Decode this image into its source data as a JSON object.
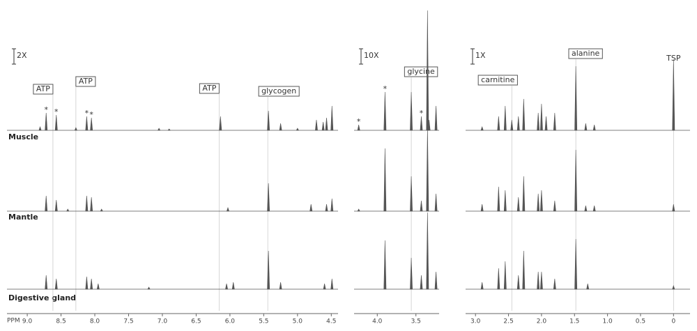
{
  "rows": [
    "Muscle",
    "Mantle",
    "Digestive gland"
  ],
  "x_label": "PPM",
  "chart_data": [
    {
      "type": "spectrum",
      "scale_label": "2X",
      "color": "#555555",
      "xlim": [
        9.3,
        4.4
      ],
      "xticks": [
        {
          "value": 9,
          "label": "9.0"
        },
        8.5,
        {
          "value": 8,
          "label": "8.0"
        },
        7.5,
        {
          "value": 7,
          "label": "7.0"
        },
        6.5,
        {
          "value": 6,
          "label": "6.0"
        },
        5.5,
        {
          "value": 5,
          "label": "5.0"
        },
        4.5
      ],
      "series": [
        {
          "x": [
            8.81,
            8.72,
            8.57,
            8.28,
            8.12,
            8.05,
            7.05,
            6.9,
            6.14,
            5.43,
            5.25,
            5.0,
            4.72,
            4.62,
            4.57,
            4.49
          ],
          "values": [
            5,
            25,
            22,
            4,
            20,
            18,
            3,
            2,
            20,
            28,
            10,
            3,
            15,
            12,
            18,
            35
          ]
        },
        {
          "x": [
            8.72,
            8.57,
            8.4,
            8.12,
            8.05,
            7.9,
            6.03,
            5.43,
            4.8,
            4.57,
            4.49
          ],
          "values": [
            22,
            16,
            3,
            22,
            20,
            3,
            5,
            40,
            10,
            10,
            18
          ]
        },
        {
          "x": [
            8.72,
            8.57,
            8.12,
            8.05,
            7.95,
            7.2,
            6.05,
            5.95,
            5.43,
            5.25,
            4.6,
            4.49
          ],
          "values": [
            20,
            15,
            18,
            15,
            8,
            3,
            8,
            10,
            55,
            10,
            8,
            15
          ]
        }
      ],
      "annotations": [
        {
          "text": "ATP",
          "x": 8.62
        },
        {
          "text": "ATP",
          "x": 8.28
        },
        {
          "text": "ATP",
          "x": 6.16
        },
        {
          "text": "glycogen",
          "x": 5.44
        }
      ],
      "markers": [
        {
          "text": "*",
          "x": 8.72
        },
        {
          "text": "*",
          "x": 8.57
        },
        {
          "text": "*",
          "x": 8.12
        },
        {
          "text": "*",
          "x": 8.05
        }
      ]
    },
    {
      "type": "spectrum",
      "scale_label": "10X",
      "color": "#555555",
      "xlim": [
        4.3,
        3.2
      ],
      "xticks": [
        {
          "value": 4,
          "label": "4.0"
        },
        3.5
      ],
      "series": [
        {
          "x": [
            4.24,
            3.9,
            3.56,
            3.43,
            3.35,
            3.33,
            3.24
          ],
          "values": [
            8,
            55,
            55,
            20,
            172,
            15,
            35
          ]
        },
        {
          "x": [
            4.24,
            3.9,
            3.56,
            3.43,
            3.35,
            3.24
          ],
          "values": [
            3,
            90,
            50,
            15,
            120,
            25
          ]
        },
        {
          "x": [
            3.9,
            3.56,
            3.43,
            3.35,
            3.24
          ],
          "values": [
            70,
            45,
            20,
            110,
            25
          ]
        }
      ],
      "annotations": [
        {
          "text": "glycine",
          "x": 3.56
        }
      ],
      "markers": [
        {
          "text": "*",
          "x": 4.24
        },
        {
          "text": "*",
          "x": 3.9
        },
        {
          "text": "*",
          "x": 3.43
        }
      ]
    },
    {
      "type": "spectrum",
      "scale_label": "1X",
      "color": "#555555",
      "xlim": [
        3.15,
        -0.25
      ],
      "xticks": [
        {
          "value": 3,
          "label": "3.0"
        },
        2.5,
        {
          "value": 2,
          "label": "2.0"
        },
        1.5,
        {
          "value": 1,
          "label": "1.0"
        },
        0.5,
        0
      ],
      "series": [
        {
          "x": [
            2.9,
            2.65,
            2.55,
            2.45,
            2.35,
            2.27,
            2.05,
            2.0,
            1.93,
            1.8,
            1.48,
            1.33,
            1.2,
            0
          ],
          "values": [
            5,
            20,
            35,
            15,
            20,
            45,
            25,
            38,
            20,
            25,
            92,
            10,
            8,
            102
          ]
        },
        {
          "x": [
            2.9,
            2.65,
            2.55,
            2.35,
            2.27,
            2.05,
            2.0,
            1.8,
            1.48,
            1.33,
            1.2,
            0
          ],
          "values": [
            10,
            35,
            30,
            20,
            50,
            25,
            30,
            15,
            88,
            8,
            8,
            10
          ]
        },
        {
          "x": [
            2.9,
            2.65,
            2.55,
            2.35,
            2.27,
            2.05,
            2.0,
            1.8,
            1.48,
            1.3,
            0
          ],
          "values": [
            10,
            30,
            40,
            20,
            55,
            25,
            25,
            15,
            72,
            8,
            5
          ]
        }
      ],
      "annotations": [
        {
          "text": "carnitine",
          "x": 2.45
        },
        {
          "text": "alanine",
          "x": 1.48
        },
        {
          "text": "TSP",
          "x": 0
        }
      ],
      "markers": []
    }
  ]
}
